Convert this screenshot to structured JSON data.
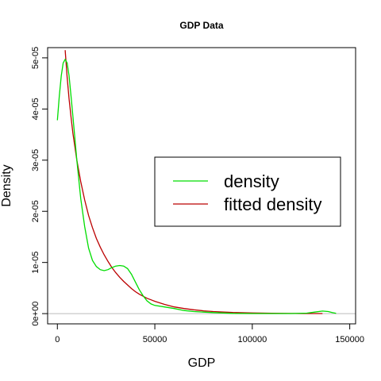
{
  "chart_data": {
    "type": "line",
    "title": "GDP Data",
    "xlabel": "GDP",
    "ylabel": "Density",
    "xlim": [
      -5000,
      153000
    ],
    "ylim": [
      -2e-06,
      5.2e-05
    ],
    "x_ticks": [
      0,
      50000,
      100000,
      150000
    ],
    "x_tick_labels": [
      "0",
      "50000",
      "100000",
      "150000"
    ],
    "y_ticks": [
      0,
      1e-05,
      2e-05,
      3e-05,
      4e-05,
      5e-05
    ],
    "y_tick_labels": [
      "0e+00",
      "1e-05",
      "2e-05",
      "3e-05",
      "4e-05",
      "5e-05"
    ],
    "grid": false,
    "legend_position": "center-right",
    "colors": {
      "density": "#00dd00",
      "fitted": "#bb0000",
      "baseline": "#bbbbbb",
      "axis": "#000000"
    },
    "series": [
      {
        "name": "density",
        "color": "#00dd00",
        "x": [
          0,
          1000,
          2000,
          3000,
          4000,
          5000,
          6000,
          7000,
          8000,
          10000,
          12000,
          14000,
          16000,
          18000,
          20000,
          22000,
          24000,
          26000,
          28000,
          30000,
          32000,
          34000,
          36000,
          38000,
          40000,
          42000,
          44000,
          46000,
          48000,
          50000,
          55000,
          60000,
          65000,
          70000,
          75000,
          80000,
          90000,
          100000,
          110000,
          120000,
          128000,
          132000,
          136000,
          139000,
          141000,
          143000
        ],
        "y": [
          3.78e-05,
          4.25e-05,
          4.65e-05,
          4.9e-05,
          4.97e-05,
          4.9e-05,
          4.65e-05,
          4.25e-05,
          3.85e-05,
          3e-05,
          2.25e-05,
          1.7e-05,
          1.28e-05,
          1.04e-05,
          9.2e-06,
          8.6e-06,
          8.4e-06,
          8.6e-06,
          9e-06,
          9.3e-06,
          9.4e-06,
          9.3e-06,
          8.8e-06,
          7.7e-06,
          6.2e-06,
          4.7e-06,
          3.5e-06,
          2.5e-06,
          1.9e-06,
          1.6e-06,
          1.3e-06,
          1e-06,
          6e-07,
          4e-07,
          3e-07,
          2e-07,
          5e-08,
          2e-08,
          1e-08,
          2e-08,
          1e-07,
          3e-07,
          5e-07,
          4e-07,
          2e-07,
          5e-08
        ]
      },
      {
        "name": "fitted density",
        "color": "#bb0000",
        "x": [
          4000,
          5000,
          6000,
          7000,
          8000,
          10000,
          12000,
          14000,
          16000,
          18000,
          20000,
          22000,
          24000,
          26000,
          28000,
          30000,
          32000,
          34000,
          36000,
          38000,
          40000,
          42000,
          44000,
          46000,
          48000,
          50000,
          55000,
          60000,
          65000,
          70000,
          75000,
          80000,
          90000,
          100000,
          110000,
          120000,
          130000,
          136000
        ],
        "y": [
          5.15e-05,
          4.62e-05,
          4.2e-05,
          3.84e-05,
          3.52e-05,
          3e-05,
          2.58e-05,
          2.22e-05,
          1.92e-05,
          1.68e-05,
          1.47e-05,
          1.3e-05,
          1.15e-05,
          1.02e-05,
          9e-06,
          8e-06,
          7.1e-06,
          6.3e-06,
          5.6e-06,
          4.9e-06,
          4.3e-06,
          3.8e-06,
          3.4e-06,
          3e-06,
          2.7e-06,
          2.4e-06,
          1.8e-06,
          1.3e-06,
          1e-06,
          7.5e-07,
          5.5e-07,
          4e-07,
          2.2e-07,
          1.2e-07,
          6e-08,
          3e-08,
          2e-08,
          1e-08
        ]
      }
    ]
  }
}
